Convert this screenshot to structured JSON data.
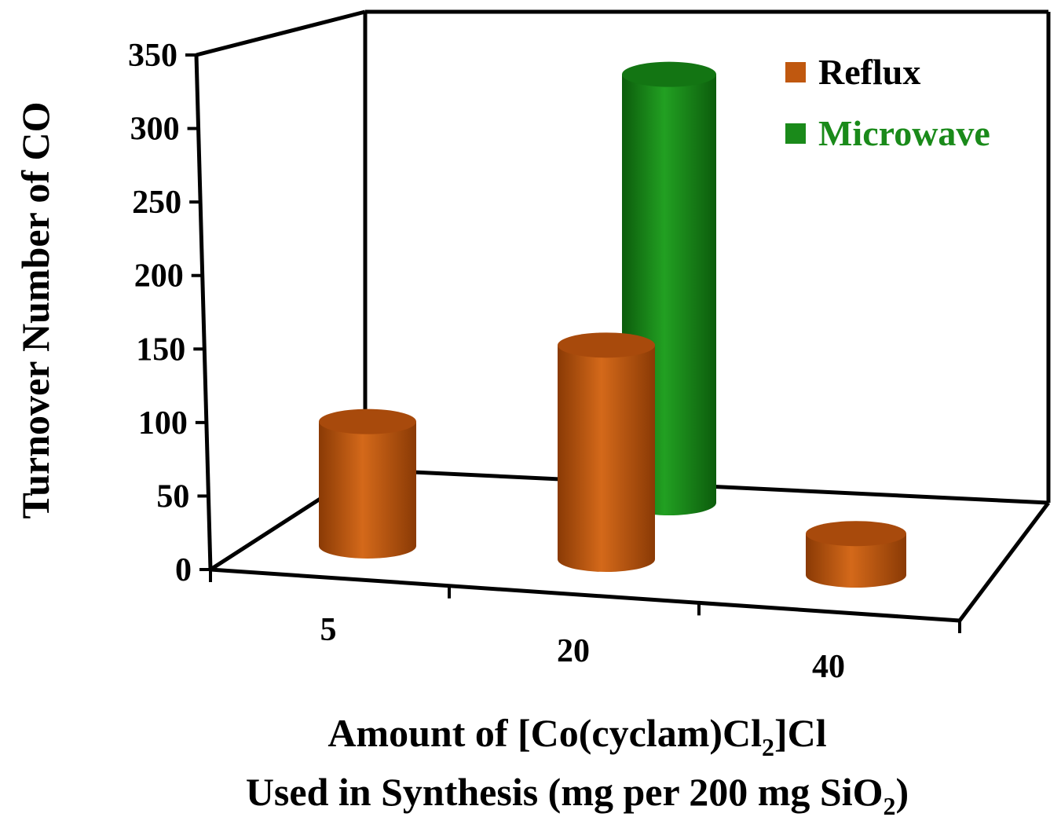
{
  "chart_data": {
    "type": "bar",
    "style": "3d-cylinder",
    "categories": [
      "5",
      "20",
      "40"
    ],
    "series": [
      {
        "name": "Reflux",
        "values": [
          90,
          155,
          30
        ],
        "color": "#c0580f"
      },
      {
        "name": "Microwave",
        "values": [
          0,
          310,
          0
        ],
        "color": "#1a8a1a"
      }
    ],
    "ylabel": "Turnover Number of CO",
    "xlabel_line1": {
      "prefix": "Amount of [Co(cyclam)Cl",
      "sub": "2",
      "suffix": "]Cl"
    },
    "xlabel_line2": {
      "prefix": "Used in Synthesis (mg per 200 mg SiO",
      "sub": "2",
      "suffix": ")"
    },
    "ylim": [
      0,
      350
    ],
    "yticks": [
      "0",
      "50",
      "100",
      "150",
      "200",
      "250",
      "300",
      "350"
    ],
    "legend_position": "top-right",
    "legend_text_colors": [
      "#000000",
      "#1a8a1a"
    ],
    "grid": false
  }
}
